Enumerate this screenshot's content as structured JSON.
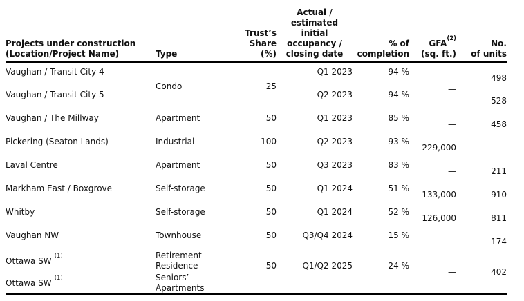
{
  "colors": {
    "background": "#ffffff",
    "text": "#111111",
    "rule": "#000000"
  },
  "table": {
    "header": {
      "project": [
        "Projects under construction",
        "(Location/Project Name)"
      ],
      "type": "Type",
      "share": [
        "Trust’s",
        "Share",
        "(%)"
      ],
      "date": [
        "Actual /",
        "estimated",
        "initial",
        "occupancy /",
        "closing date"
      ],
      "completion": [
        "% of",
        "completion"
      ],
      "gfa_label": "GFA",
      "gfa_sup": "(2)",
      "gfa_unit": "(sq. ft.)",
      "units": [
        "No.",
        "of units"
      ]
    },
    "rows": [
      {
        "location": "Vaughan / Transit City 4",
        "type": "Condo",
        "share": "25",
        "date": "Q1 2023",
        "completion": "94 %",
        "gfa": "—",
        "units": "498"
      },
      {
        "location": "Vaughan / Transit City 5",
        "date": "Q2 2023",
        "completion": "94 %",
        "units": "528"
      },
      {
        "location": "Vaughan / The Millway",
        "type": "Apartment",
        "share": "50",
        "date": "Q1 2023",
        "completion": "85 %",
        "gfa": "—",
        "units": "458"
      },
      {
        "location": "Pickering (Seaton Lands)",
        "type": "Industrial",
        "share": "100",
        "date": "Q2 2023",
        "completion": "93 %",
        "gfa": "229,000",
        "units": "—"
      },
      {
        "location": "Laval Centre",
        "type": "Apartment",
        "share": "50",
        "date": "Q3 2023",
        "completion": "83 %",
        "gfa": "—",
        "units": "211"
      },
      {
        "location": "Markham East / Boxgrove",
        "type": "Self-storage",
        "share": "50",
        "date": "Q1 2024",
        "completion": "51 %",
        "gfa": "133,000",
        "units": "910"
      },
      {
        "location": "Whitby",
        "type": "Self-storage",
        "share": "50",
        "date": "Q1 2024",
        "completion": "52 %",
        "gfa": "126,000",
        "units": "811"
      },
      {
        "location": "Vaughan NW",
        "type": "Townhouse",
        "share": "50",
        "date": "Q3/Q4 2024",
        "completion": "15 %",
        "gfa": "—",
        "units": "174"
      },
      {
        "location": "Ottawa SW",
        "sup": "(1)",
        "type": "Retirement Residence",
        "share": "50",
        "date": "Q1/Q2 2025",
        "completion": "24 %",
        "gfa": "—",
        "units": "402"
      },
      {
        "location": "Ottawa SW",
        "sup": "(1)",
        "type": "Seniors’ Apartments"
      }
    ]
  }
}
